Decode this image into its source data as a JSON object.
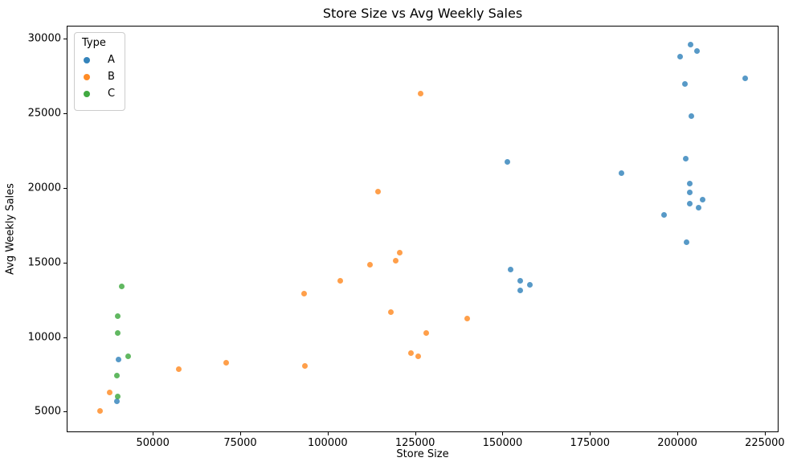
{
  "chart_data": {
    "type": "scatter",
    "title": "Store Size vs Avg Weekly Sales",
    "xlabel": "Store Size",
    "ylabel": "Avg Weekly Sales",
    "xlim": [
      25600,
      228700
    ],
    "ylim": [
      3680,
      30790
    ],
    "x_ticks": [
      50000,
      75000,
      100000,
      125000,
      150000,
      175000,
      200000,
      225000
    ],
    "y_ticks": [
      5000,
      10000,
      15000,
      20000,
      25000,
      30000
    ],
    "grid": false,
    "legend": {
      "title": "Type",
      "position": "upper left"
    },
    "series": [
      {
        "name": "A",
        "color": "#1f77b4",
        "points": [
          [
            203700,
            29570
          ],
          [
            205500,
            29130
          ],
          [
            200700,
            28790
          ],
          [
            219300,
            27330
          ],
          [
            202200,
            26950
          ],
          [
            204000,
            24790
          ],
          [
            202400,
            21930
          ],
          [
            151400,
            21750
          ],
          [
            184100,
            21000
          ],
          [
            203500,
            20250
          ],
          [
            203600,
            19680
          ],
          [
            207200,
            19220
          ],
          [
            203600,
            18950
          ],
          [
            206000,
            18680
          ],
          [
            196300,
            18160
          ],
          [
            202700,
            16340
          ],
          [
            152400,
            14520
          ],
          [
            155000,
            13750
          ],
          [
            157800,
            13480
          ],
          [
            155000,
            13130
          ],
          [
            40100,
            8520
          ],
          [
            39800,
            5680
          ]
        ]
      },
      {
        "name": "B",
        "color": "#ff7f0e",
        "points": [
          [
            126500,
            26320
          ],
          [
            114300,
            19740
          ],
          [
            120700,
            15660
          ],
          [
            119500,
            15110
          ],
          [
            112100,
            14840
          ],
          [
            103700,
            13740
          ],
          [
            93200,
            12910
          ],
          [
            118100,
            11650
          ],
          [
            140000,
            11220
          ],
          [
            128100,
            10270
          ],
          [
            123800,
            8950
          ],
          [
            125900,
            8720
          ],
          [
            70900,
            8300
          ],
          [
            93600,
            8080
          ],
          [
            57400,
            7830
          ],
          [
            37600,
            6300
          ],
          [
            34900,
            5050
          ]
        ]
      },
      {
        "name": "C",
        "color": "#2ca02c",
        "points": [
          [
            41100,
            13380
          ],
          [
            39900,
            11400
          ],
          [
            39900,
            10250
          ],
          [
            43000,
            8700
          ],
          [
            39700,
            7400
          ],
          [
            40000,
            6020
          ]
        ]
      }
    ]
  }
}
